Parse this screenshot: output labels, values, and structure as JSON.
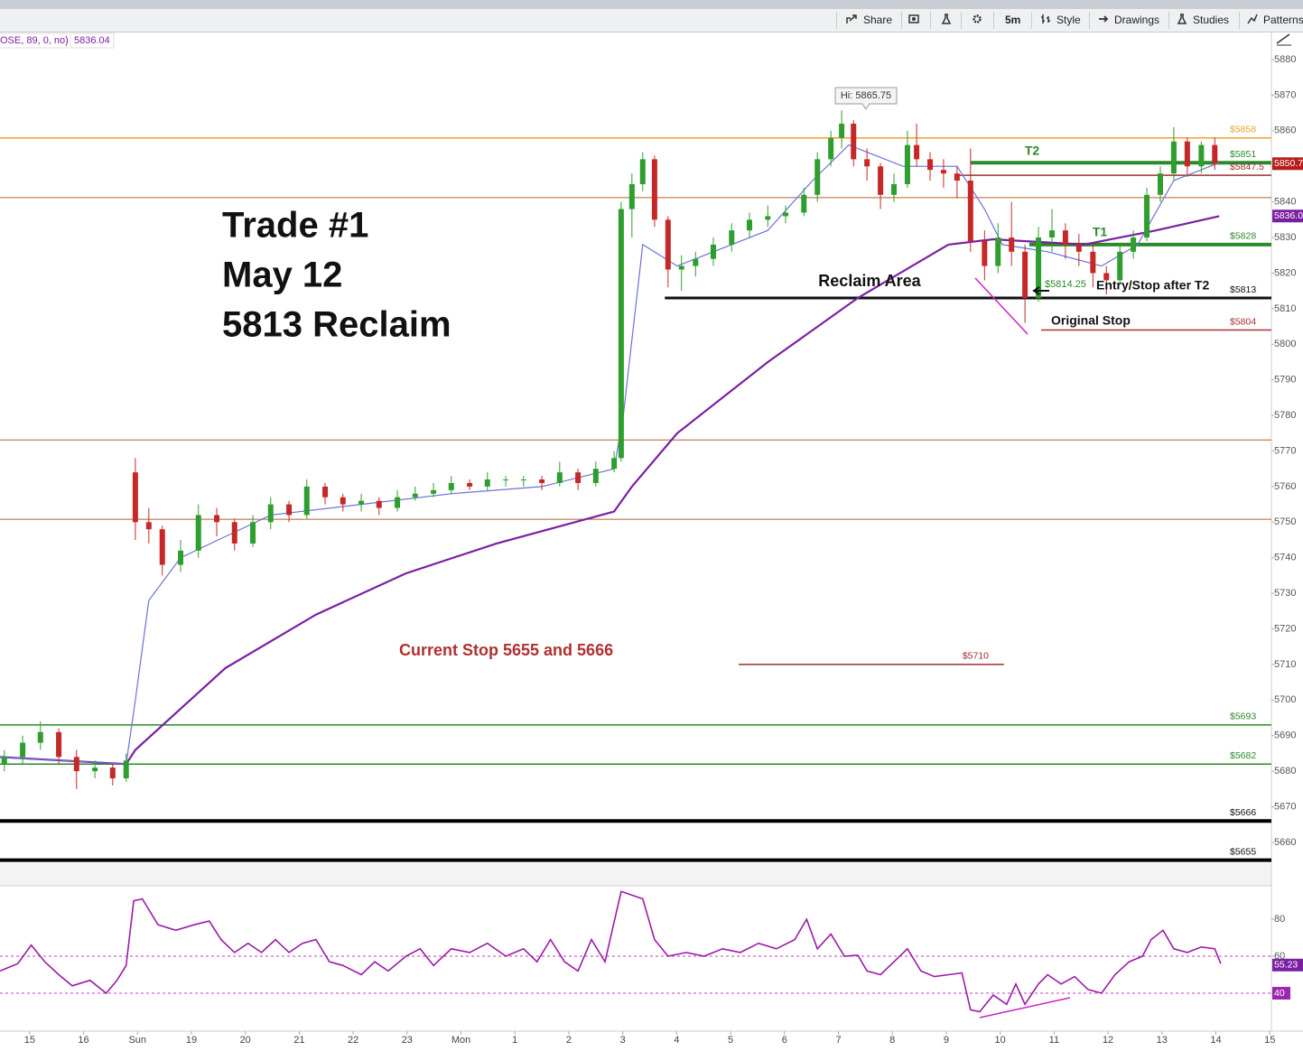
{
  "toolbar": {
    "buttons": [
      "Share",
      "5m",
      "Style",
      "Drawings",
      "Studies",
      "Patterns"
    ]
  },
  "chart_data": {
    "type": "candlestick",
    "study_label": "OSE, 89, 0, no)",
    "study_value": "5836.04",
    "up_color": "#2e9e2e",
    "down_color": "#c62828",
    "x": [
      -0.47,
      -0.13,
      0.2,
      0.54,
      0.87,
      1.21,
      1.54,
      1.79,
      1.96,
      2.21,
      2.46,
      2.8,
      3.13,
      3.47,
      3.8,
      4.14,
      4.47,
      4.81,
      5.14,
      5.48,
      5.81,
      6.15,
      6.48,
      6.82,
      7.15,
      7.49,
      7.82,
      8.16,
      8.49,
      8.83,
      9.16,
      9.5,
      9.83,
      10.17,
      10.5,
      10.84,
      10.97,
      11.17,
      11.37,
      11.59,
      11.84,
      12.09,
      12.35,
      12.68,
      13.02,
      13.35,
      13.69,
      14.02,
      14.36,
      14.61,
      14.86,
      15.06,
      15.28,
      15.53,
      15.78,
      16.03,
      16.28,
      16.45,
      16.7,
      16.95,
      17.2,
      17.45,
      17.71,
      17.96,
      18.21,
      18.46,
      18.71,
      18.96,
      19.21,
      19.46,
      19.72,
      19.97,
      20.22,
      20.47,
      20.72,
      20.97,
      21.22,
      21.47,
      21.73,
      21.98
    ],
    "open": [
      5682,
      5684,
      5688,
      5691,
      5684,
      5680,
      5681,
      5678,
      5764,
      5750,
      5748,
      5738,
      5742,
      5752,
      5750,
      5744,
      5750,
      5755,
      5752,
      5760,
      5757,
      5755,
      5756,
      5754,
      5757,
      5758,
      5759,
      5761,
      5760,
      5762,
      5762,
      5762,
      5761,
      5764,
      5761,
      5765,
      5768,
      5838,
      5845,
      5852,
      5835,
      5821,
      5822,
      5824,
      5828,
      5832,
      5835,
      5836,
      5837,
      5842,
      5852,
      5858,
      5862,
      5852,
      5850,
      5842,
      5845,
      5856,
      5852,
      5849,
      5848,
      5846,
      5829,
      5822,
      5830,
      5826,
      5813,
      5830,
      5832,
      5828,
      5826,
      5820,
      5818,
      5826,
      5830,
      5842,
      5848,
      5857,
      5850,
      5856
    ],
    "high": [
      5686,
      5690,
      5694,
      5692,
      5686,
      5683,
      5682,
      5685,
      5768,
      5754,
      5749,
      5745,
      5755,
      5754,
      5751,
      5752,
      5757,
      5756,
      5762,
      5761,
      5758,
      5758,
      5757,
      5759,
      5760,
      5761,
      5763,
      5762,
      5764,
      5763,
      5763,
      5763,
      5767,
      5765,
      5767,
      5770,
      5840,
      5848,
      5854,
      5853,
      5836,
      5825,
      5826,
      5830,
      5834,
      5837,
      5839,
      5839,
      5844,
      5854,
      5860,
      5865.75,
      5863,
      5855,
      5851,
      5848,
      5860,
      5862,
      5854,
      5852,
      5850,
      5855,
      5832,
      5834,
      5840,
      5828,
      5833,
      5838,
      5834,
      5831,
      5828,
      5822,
      5828,
      5832,
      5844,
      5850,
      5861,
      5858,
      5857,
      5858
    ],
    "low": [
      5680,
      5682,
      5686,
      5682,
      5675,
      5678,
      5676,
      5677,
      5745,
      5744,
      5735,
      5736,
      5740,
      5746,
      5742,
      5743,
      5748,
      5750,
      5751,
      5755,
      5753,
      5753,
      5752,
      5753,
      5756,
      5757,
      5758,
      5759,
      5759,
      5760,
      5760,
      5759,
      5760,
      5759,
      5760,
      5764,
      5767,
      5830,
      5843,
      5833,
      5816,
      5815,
      5819,
      5822,
      5826,
      5830,
      5833,
      5834,
      5836,
      5840,
      5850,
      5855,
      5850,
      5846,
      5838,
      5840,
      5844,
      5850,
      5846,
      5844,
      5841,
      5826,
      5818,
      5820,
      5822,
      5806,
      5812,
      5826,
      5824,
      5822,
      5816,
      5814,
      5817,
      5824,
      5829,
      5840,
      5846,
      5847,
      5848,
      5849
    ],
    "close": [
      5684,
      5688,
      5691,
      5684,
      5680,
      5681,
      5678,
      5683,
      5750,
      5748,
      5738,
      5742,
      5752,
      5750,
      5744,
      5750,
      5755,
      5752,
      5760,
      5757,
      5755,
      5756,
      5754,
      5757,
      5758,
      5759,
      5761,
      5760,
      5762,
      5762,
      5762,
      5761,
      5764,
      5761,
      5765,
      5768,
      5838,
      5845,
      5852,
      5835,
      5821,
      5822,
      5824,
      5828,
      5832,
      5835,
      5836,
      5837,
      5842,
      5852,
      5858,
      5862,
      5852,
      5850,
      5842,
      5845,
      5856,
      5852,
      5849,
      5848,
      5846,
      5829,
      5822,
      5830,
      5826,
      5813,
      5830,
      5832,
      5828,
      5826,
      5820,
      5818,
      5826,
      5830,
      5842,
      5848,
      5857,
      5850,
      5856,
      5850.75
    ],
    "xlim": [
      -0.55,
      23.03
    ],
    "xticks": [
      {
        "value": 0,
        "label": "15"
      },
      {
        "value": 1,
        "label": "16"
      },
      {
        "value": 2,
        "label": "Sun"
      },
      {
        "value": 3,
        "label": "19"
      },
      {
        "value": 4,
        "label": "20"
      },
      {
        "value": 5,
        "label": "21"
      },
      {
        "value": 6,
        "label": "22"
      },
      {
        "value": 7,
        "label": "23"
      },
      {
        "value": 8,
        "label": "Mon"
      },
      {
        "value": 9,
        "label": "1"
      },
      {
        "value": 10,
        "label": "2"
      },
      {
        "value": 11,
        "label": "3"
      },
      {
        "value": 12,
        "label": "4"
      },
      {
        "value": 13,
        "label": "5"
      },
      {
        "value": 14,
        "label": "6"
      },
      {
        "value": 15,
        "label": "7"
      },
      {
        "value": 16,
        "label": "8"
      },
      {
        "value": 17,
        "label": "9"
      },
      {
        "value": 18,
        "label": "10"
      },
      {
        "value": 19,
        "label": "11"
      },
      {
        "value": 20,
        "label": "12"
      },
      {
        "value": 21,
        "label": "13"
      },
      {
        "value": 22,
        "label": "14"
      },
      {
        "value": 23,
        "label": "15"
      }
    ],
    "ylim": [
      5654.4,
      5882.8
    ],
    "yticks": [
      5660,
      5670,
      5680,
      5690,
      5700,
      5710,
      5720,
      5730,
      5740,
      5750,
      5760,
      5770,
      5780,
      5790,
      5800,
      5810,
      5820,
      5830,
      5840,
      5850,
      5860,
      5870,
      5880
    ],
    "moving_averages": [
      {
        "color": "#7b1fa2",
        "x": [
          -0.55,
          1.79,
          1.96,
          3.63,
          5.31,
          6.98,
          8.66,
          10.84,
          11.17,
          12.01,
          13.69,
          15.36,
          17.04,
          17.87,
          19.55,
          20.89,
          22.06
        ],
        "values": [
          5684,
          5682,
          5686,
          5709,
          5724,
          5735.6,
          5744,
          5753,
          5760,
          5775,
          5795,
          5813,
          5828,
          5829.5,
          5828,
          5832,
          5836
        ]
      },
      {
        "color": "#6a72d8",
        "x": [
          -0.55,
          1.79,
          1.96,
          2.21,
          2.8,
          4.47,
          6.15,
          7.82,
          9.5,
          10.84,
          11.01,
          11.37,
          12.01,
          13.69,
          14.52,
          15.19,
          16.2,
          17.2,
          17.71,
          18.04,
          18.88,
          19.88,
          20.55,
          21.22,
          22.06
        ],
        "values": [
          5684,
          5682,
          5700,
          5728,
          5740,
          5752,
          5755,
          5758,
          5760,
          5765,
          5780,
          5828,
          5822,
          5832,
          5846,
          5856,
          5850,
          5850,
          5838,
          5828,
          5826,
          5822,
          5828,
          5846,
          5851
        ]
      }
    ],
    "levels": [
      {
        "value": 5858,
        "label": "$5858",
        "color": "#f0a030",
        "width": 1.5
      },
      {
        "value": 5851,
        "label": "$5851",
        "color": "#2a8a2a",
        "width": 4,
        "x_from": 17.45
      },
      {
        "value": 5847.5,
        "label": "$5847.5",
        "color": "#a03030",
        "width": 1.5,
        "x_from": 17.2
      },
      {
        "value": 5841.2,
        "color": "#b0602a",
        "width": 1
      },
      {
        "value": 5828,
        "label": "$5828",
        "color": "#2a8a2a",
        "width": 4,
        "x_from": 18.54
      },
      {
        "value": 5813,
        "label": "$5813",
        "color": "#111111",
        "width": 3,
        "x_from": 11.78
      },
      {
        "value": 5804,
        "label": "$5804",
        "color": "#b03030",
        "width": 1.5,
        "x_from": 18.76
      },
      {
        "value": 5773.1,
        "color": "#b0602a",
        "width": 1
      },
      {
        "value": 5750.8,
        "color": "#b0602a",
        "width": 1
      },
      {
        "value": 5710,
        "label": "$5710",
        "color": "#a03030",
        "width": 1.5,
        "x_from": 13.15,
        "x_to": 18.07
      },
      {
        "value": 5693,
        "label": "$5693",
        "color": "#2a8a2a",
        "width": 1.5
      },
      {
        "value": 5682,
        "label": "$5682",
        "color": "#2a8a2a",
        "width": 1.5
      },
      {
        "value": 5666,
        "label": "$5666",
        "color": "#000000",
        "width": 4
      },
      {
        "value": 5655,
        "label": "$5655",
        "color": "#000000",
        "width": 4
      }
    ],
    "badges": [
      {
        "value": 5850.75,
        "label": "5850.7",
        "color": "#b71c1c"
      },
      {
        "value": 5836.04,
        "label": "5836.0",
        "color": "#7b1fa2"
      }
    ],
    "annotations": [
      "Trade #1",
      "May 12",
      "5813 Reclaim",
      "Current Stop 5655 and 5666",
      "T2",
      "T1",
      "Reclaim Area",
      "Entry/Stop after T2",
      "Original Stop",
      "$5814.25",
      "Hi: 5865.75"
    ],
    "rsi": {
      "color": "#9c1aa8",
      "ylim": [
        19.5,
        97.6
      ],
      "yticks": [
        40,
        60,
        80
      ],
      "levels": [
        60,
        40
      ],
      "badges": [
        {
          "value": 55.23,
          "color": "#7b1fa2"
        },
        {
          "value": 40,
          "color": "#9c27b0"
        }
      ],
      "x": [
        -0.55,
        -0.22,
        0.03,
        0.28,
        0.54,
        0.79,
        1.12,
        1.42,
        1.62,
        1.79,
        1.93,
        2.09,
        2.38,
        2.71,
        3.05,
        3.33,
        3.55,
        3.8,
        4.05,
        4.3,
        4.56,
        4.81,
        5.06,
        5.31,
        5.56,
        5.81,
        6.15,
        6.4,
        6.65,
        6.98,
        7.24,
        7.49,
        7.82,
        8.16,
        8.49,
        8.83,
        9.16,
        9.41,
        9.66,
        9.92,
        10.17,
        10.42,
        10.67,
        10.97,
        11.17,
        11.37,
        11.59,
        11.84,
        12.18,
        12.51,
        12.85,
        13.18,
        13.52,
        13.85,
        14.19,
        14.41,
        14.61,
        14.86,
        15.11,
        15.36,
        15.53,
        15.78,
        16.03,
        16.28,
        16.53,
        16.78,
        17.04,
        17.29,
        17.45,
        17.62,
        17.87,
        18.12,
        18.29,
        18.46,
        18.71,
        18.88,
        19.13,
        19.38,
        19.63,
        19.88,
        20.13,
        20.39,
        20.64,
        20.8,
        21.02,
        21.22,
        21.47,
        21.73,
        21.98,
        22.09
      ],
      "values": [
        52,
        56,
        66,
        57,
        50,
        44,
        47,
        40,
        47,
        55,
        90,
        91,
        77,
        74,
        77,
        79,
        69,
        62,
        67,
        62,
        69,
        62,
        67,
        69,
        57,
        55,
        50,
        57,
        52,
        60,
        64,
        55,
        64,
        62,
        67,
        60,
        64,
        57,
        69,
        57,
        52,
        69,
        57,
        95,
        93,
        91,
        69,
        60,
        62,
        60,
        64,
        62,
        67,
        64,
        69,
        80,
        64,
        72,
        60,
        60.5,
        52,
        50,
        57,
        64,
        52,
        49,
        50,
        51,
        31,
        30,
        39,
        34,
        45,
        34,
        45,
        50,
        45,
        49,
        42,
        40,
        50,
        57,
        60,
        69,
        74,
        64,
        62,
        65,
        64,
        56
      ]
    }
  }
}
